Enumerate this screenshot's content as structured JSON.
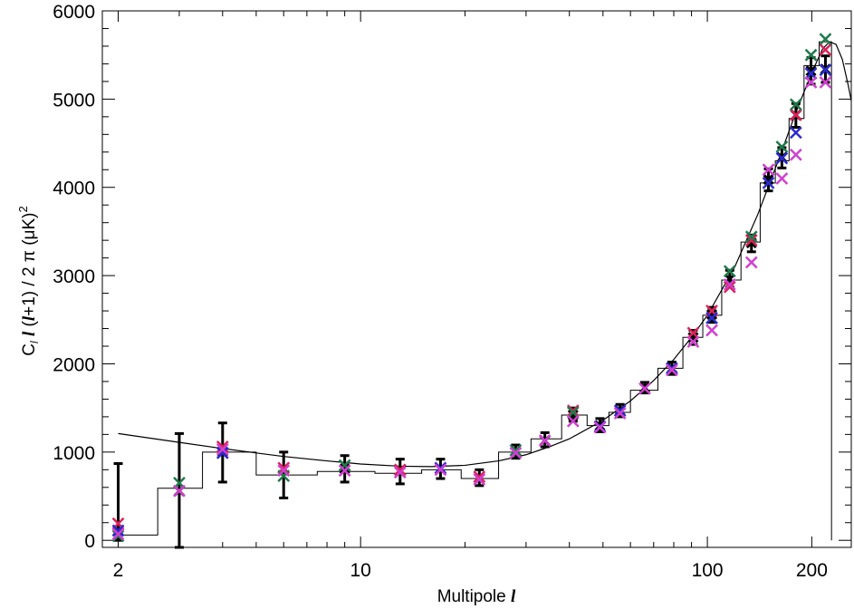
{
  "chart_data": {
    "type": "scatter",
    "title": "",
    "xlabel": "Multipole",
    "xlabel_symbol": "l",
    "ylabel": "C",
    "ylabel_sub": "l",
    "ylabel_l1": "l",
    "ylabel_open": "(",
    "ylabel_l2": "l",
    "ylabel_tail": "+1) / 2 π   (μK)",
    "ylabel_sup": "2",
    "x_scale": "log",
    "xlim": [
      1.8,
      260
    ],
    "ylim": [
      -80,
      6000
    ],
    "x_ticks": [
      {
        "value": 2,
        "label": "2"
      },
      {
        "value": 10,
        "label": "10"
      },
      {
        "value": 100,
        "label": "100"
      },
      {
        "value": 200,
        "label": "200"
      }
    ],
    "y_ticks": [
      {
        "value": 0,
        "label": "0"
      },
      {
        "value": 1000,
        "label": "1000"
      },
      {
        "value": 2000,
        "label": "2000"
      },
      {
        "value": 3000,
        "label": "3000"
      },
      {
        "value": 4000,
        "label": "4000"
      },
      {
        "value": 5000,
        "label": "5000"
      },
      {
        "value": 6000,
        "label": "6000"
      }
    ],
    "grid": false,
    "legend": "none",
    "binned_data": {
      "name": "",
      "color": "#000000",
      "points": [
        {
          "x": 2,
          "y": 110,
          "ylo": 0,
          "yhi": 870
        },
        {
          "x": 3,
          "y": 560,
          "ylo": -80,
          "yhi": 1210
        },
        {
          "x": 4,
          "y": 1000,
          "ylo": 660,
          "yhi": 1330
        },
        {
          "x": 6,
          "y": 800,
          "ylo": 480,
          "yhi": 1000
        },
        {
          "x": 9,
          "y": 810,
          "ylo": 660,
          "yhi": 960
        },
        {
          "x": 13,
          "y": 780,
          "ylo": 640,
          "yhi": 920
        },
        {
          "x": 17,
          "y": 810,
          "ylo": 700,
          "yhi": 920
        },
        {
          "x": 22,
          "y": 710,
          "ylo": 620,
          "yhi": 800
        },
        {
          "x": 28,
          "y": 1000,
          "ylo": 930,
          "yhi": 1080
        },
        {
          "x": 34,
          "y": 1130,
          "ylo": 1060,
          "yhi": 1220
        },
        {
          "x": 41,
          "y": 1420,
          "ylo": 1350,
          "yhi": 1500
        },
        {
          "x": 49,
          "y": 1300,
          "ylo": 1230,
          "yhi": 1380
        },
        {
          "x": 56,
          "y": 1470,
          "ylo": 1400,
          "yhi": 1540
        },
        {
          "x": 66,
          "y": 1730,
          "ylo": 1670,
          "yhi": 1790
        },
        {
          "x": 79,
          "y": 1950,
          "ylo": 1880,
          "yhi": 2020
        },
        {
          "x": 91,
          "y": 2300,
          "ylo": 2220,
          "yhi": 2380
        },
        {
          "x": 103,
          "y": 2560,
          "ylo": 2470,
          "yhi": 2640
        },
        {
          "x": 116,
          "y": 2960,
          "ylo": 2870,
          "yhi": 3060
        },
        {
          "x": 134,
          "y": 3370,
          "ylo": 3270,
          "yhi": 3460
        },
        {
          "x": 150,
          "y": 4090,
          "ylo": 3960,
          "yhi": 4210
        },
        {
          "x": 164,
          "y": 4340,
          "ylo": 4220,
          "yhi": 4450
        },
        {
          "x": 180,
          "y": 4820,
          "ylo": 4680,
          "yhi": 4950
        },
        {
          "x": 199,
          "y": 5320,
          "ylo": 5170,
          "yhi": 5470
        },
        {
          "x": 219,
          "y": 5340,
          "ylo": 5190,
          "yhi": 5490
        }
      ]
    },
    "series": [
      {
        "name": "",
        "color": "#e0205a",
        "values": [
          {
            "x": 2,
            "y": 190
          },
          {
            "x": 4,
            "y": 1060
          },
          {
            "x": 6,
            "y": 820
          },
          {
            "x": 13,
            "y": 800
          },
          {
            "x": 22,
            "y": 720
          },
          {
            "x": 41,
            "y": 1470
          },
          {
            "x": 91,
            "y": 2350
          },
          {
            "x": 103,
            "y": 2600
          },
          {
            "x": 116,
            "y": 2870
          },
          {
            "x": 134,
            "y": 3400
          },
          {
            "x": 180,
            "y": 4820
          },
          {
            "x": 219,
            "y": 5560
          }
        ]
      },
      {
        "name": "",
        "color": "#1f7a4a",
        "values": [
          {
            "x": 2,
            "y": 50
          },
          {
            "x": 3,
            "y": 650
          },
          {
            "x": 6,
            "y": 730
          },
          {
            "x": 9,
            "y": 850
          },
          {
            "x": 28,
            "y": 1020
          },
          {
            "x": 41,
            "y": 1450
          },
          {
            "x": 116,
            "y": 3050
          },
          {
            "x": 134,
            "y": 3440
          },
          {
            "x": 164,
            "y": 4460
          },
          {
            "x": 180,
            "y": 4940
          },
          {
            "x": 199,
            "y": 5500
          },
          {
            "x": 219,
            "y": 5680
          }
        ]
      },
      {
        "name": "",
        "color": "#2a2ad0",
        "values": [
          {
            "x": 2,
            "y": 110
          },
          {
            "x": 4,
            "y": 990
          },
          {
            "x": 17,
            "y": 820
          },
          {
            "x": 49,
            "y": 1290
          },
          {
            "x": 56,
            "y": 1470
          },
          {
            "x": 79,
            "y": 1950
          },
          {
            "x": 103,
            "y": 2520
          },
          {
            "x": 150,
            "y": 4050
          },
          {
            "x": 164,
            "y": 4330
          },
          {
            "x": 180,
            "y": 4620
          },
          {
            "x": 199,
            "y": 5290
          },
          {
            "x": 219,
            "y": 5330
          }
        ]
      },
      {
        "name": "",
        "color": "#d040d0",
        "values": [
          {
            "x": 2,
            "y": 70
          },
          {
            "x": 3,
            "y": 560
          },
          {
            "x": 4,
            "y": 1030
          },
          {
            "x": 6,
            "y": 790
          },
          {
            "x": 9,
            "y": 790
          },
          {
            "x": 13,
            "y": 770
          },
          {
            "x": 17,
            "y": 800
          },
          {
            "x": 22,
            "y": 690
          },
          {
            "x": 28,
            "y": 990
          },
          {
            "x": 34,
            "y": 1130
          },
          {
            "x": 41,
            "y": 1350
          },
          {
            "x": 49,
            "y": 1280
          },
          {
            "x": 56,
            "y": 1440
          },
          {
            "x": 66,
            "y": 1720
          },
          {
            "x": 79,
            "y": 1930
          },
          {
            "x": 91,
            "y": 2250
          },
          {
            "x": 103,
            "y": 2380
          },
          {
            "x": 116,
            "y": 2900
          },
          {
            "x": 134,
            "y": 3150
          },
          {
            "x": 150,
            "y": 4200
          },
          {
            "x": 164,
            "y": 4100
          },
          {
            "x": 180,
            "y": 4370
          },
          {
            "x": 199,
            "y": 5190
          },
          {
            "x": 219,
            "y": 5190
          }
        ]
      }
    ],
    "model_curve": {
      "name": "",
      "color": "#000000",
      "points": [
        {
          "x": 2,
          "y": 1210
        },
        {
          "x": 3,
          "y": 1110
        },
        {
          "x": 4,
          "y": 1040
        },
        {
          "x": 5,
          "y": 990
        },
        {
          "x": 6,
          "y": 950
        },
        {
          "x": 8,
          "y": 900
        },
        {
          "x": 10,
          "y": 865
        },
        {
          "x": 13,
          "y": 840
        },
        {
          "x": 16,
          "y": 835
        },
        {
          "x": 20,
          "y": 850
        },
        {
          "x": 25,
          "y": 900
        },
        {
          "x": 30,
          "y": 970
        },
        {
          "x": 35,
          "y": 1060
        },
        {
          "x": 40,
          "y": 1150
        },
        {
          "x": 50,
          "y": 1360
        },
        {
          "x": 60,
          "y": 1580
        },
        {
          "x": 70,
          "y": 1810
        },
        {
          "x": 80,
          "y": 2050
        },
        {
          "x": 90,
          "y": 2300
        },
        {
          "x": 100,
          "y": 2550
        },
        {
          "x": 120,
          "y": 3100
        },
        {
          "x": 140,
          "y": 3700
        },
        {
          "x": 160,
          "y": 4300
        },
        {
          "x": 180,
          "y": 4850
        },
        {
          "x": 200,
          "y": 5300
        },
        {
          "x": 215,
          "y": 5570
        },
        {
          "x": 225,
          "y": 5650
        },
        {
          "x": 235,
          "y": 5620
        },
        {
          "x": 245,
          "y": 5450
        },
        {
          "x": 255,
          "y": 5150
        },
        {
          "x": 260,
          "y": 4980
        }
      ]
    },
    "binned_histogram": {
      "name": "",
      "color": "#000000",
      "bins": [
        {
          "x0": 2,
          "x1": 2.6,
          "y": 60
        },
        {
          "x0": 2.6,
          "x1": 3.5,
          "y": 590
        },
        {
          "x0": 3.5,
          "x1": 5,
          "y": 1000
        },
        {
          "x0": 5,
          "x1": 7.5,
          "y": 740
        },
        {
          "x0": 7.5,
          "x1": 11,
          "y": 780
        },
        {
          "x0": 11,
          "x1": 15,
          "y": 760
        },
        {
          "x0": 15,
          "x1": 19.5,
          "y": 800
        },
        {
          "x0": 19.5,
          "x1": 25,
          "y": 700
        },
        {
          "x0": 25,
          "x1": 31,
          "y": 1000
        },
        {
          "x0": 31,
          "x1": 38,
          "y": 1150
        },
        {
          "x0": 38,
          "x1": 45,
          "y": 1420
        },
        {
          "x0": 45,
          "x1": 52,
          "y": 1300
        },
        {
          "x0": 52,
          "x1": 60,
          "y": 1450
        },
        {
          "x0": 60,
          "x1": 72,
          "y": 1700
        },
        {
          "x0": 72,
          "x1": 85,
          "y": 1950
        },
        {
          "x0": 85,
          "x1": 97,
          "y": 2300
        },
        {
          "x0": 97,
          "x1": 110,
          "y": 2550
        },
        {
          "x0": 110,
          "x1": 125,
          "y": 2950
        },
        {
          "x0": 125,
          "x1": 142,
          "y": 3380
        },
        {
          "x0": 142,
          "x1": 157,
          "y": 4050
        },
        {
          "x0": 157,
          "x1": 172,
          "y": 4300
        },
        {
          "x0": 172,
          "x1": 190,
          "y": 4780
        },
        {
          "x0": 190,
          "x1": 210,
          "y": 5380
        },
        {
          "x0": 210,
          "x1": 228,
          "y": 5650
        }
      ]
    }
  }
}
